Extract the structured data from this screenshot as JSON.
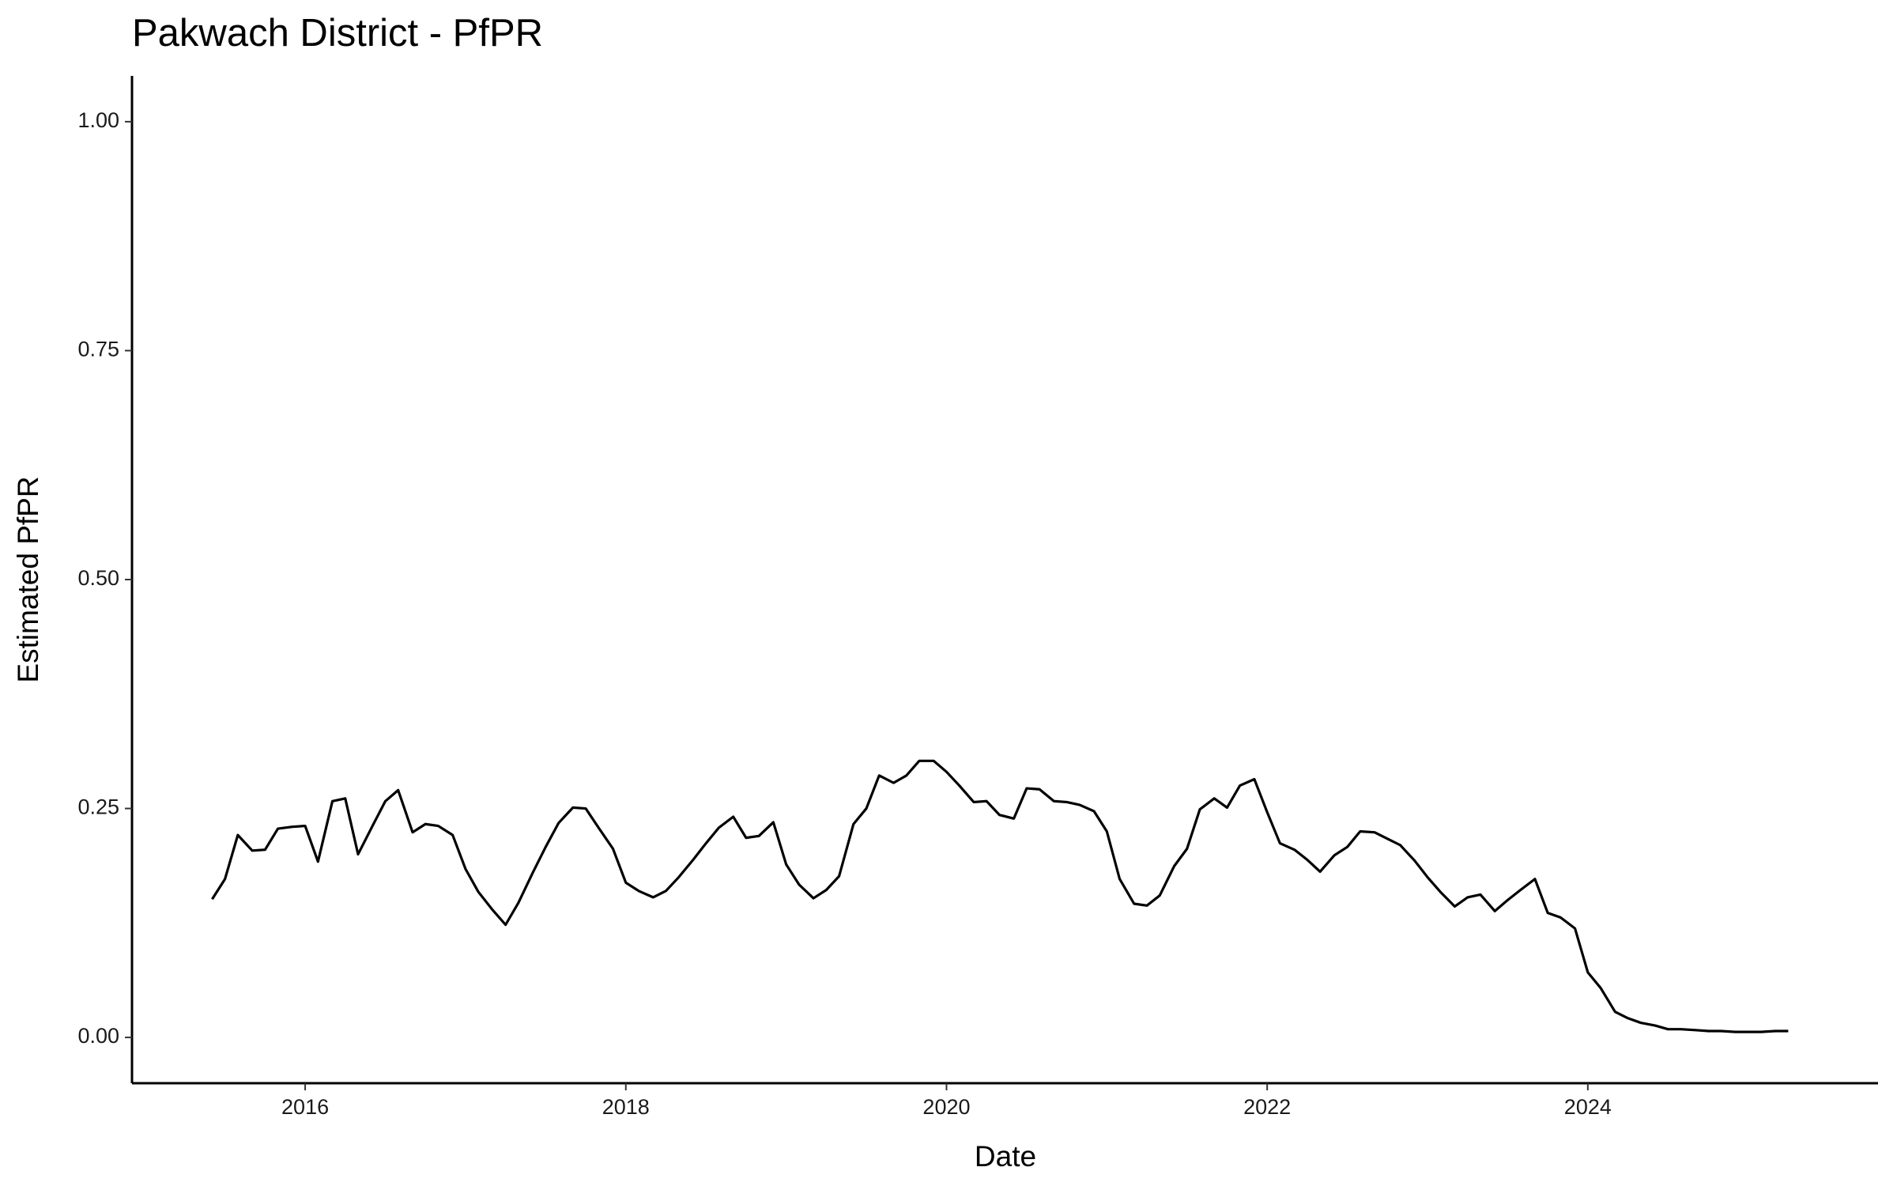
{
  "chart_data": {
    "type": "line",
    "title": "Pakwach District - PfPR",
    "x_label": "Date",
    "y_label": "Estimated PfPR",
    "x": [
      2015.42,
      2015.5,
      2015.58,
      2015.67,
      2015.75,
      2015.83,
      2015.92,
      2016.0,
      2016.08,
      2016.17,
      2016.25,
      2016.33,
      2016.42,
      2016.5,
      2016.58,
      2016.67,
      2016.75,
      2016.83,
      2016.92,
      2017.0,
      2017.08,
      2017.17,
      2017.25,
      2017.33,
      2017.42,
      2017.5,
      2017.58,
      2017.67,
      2017.75,
      2017.83,
      2017.92,
      2018.0,
      2018.08,
      2018.17,
      2018.25,
      2018.33,
      2018.42,
      2018.5,
      2018.58,
      2018.67,
      2018.75,
      2018.83,
      2018.92,
      2019.0,
      2019.08,
      2019.17,
      2019.25,
      2019.33,
      2019.42,
      2019.5,
      2019.58,
      2019.67,
      2019.75,
      2019.83,
      2019.92,
      2020.0,
      2020.08,
      2020.17,
      2020.25,
      2020.33,
      2020.42,
      2020.5,
      2020.58,
      2020.67,
      2020.75,
      2020.83,
      2020.92,
      2021.0,
      2021.08,
      2021.17,
      2021.25,
      2021.33,
      2021.42,
      2021.5,
      2021.58,
      2021.67,
      2021.75,
      2021.83,
      2021.92,
      2022.0,
      2022.08,
      2022.17,
      2022.25,
      2022.33,
      2022.42,
      2022.5,
      2022.58,
      2022.67,
      2022.75,
      2022.83,
      2022.92,
      2023.0,
      2023.08,
      2023.17,
      2023.25,
      2023.33,
      2023.42,
      2023.5,
      2023.58,
      2023.67,
      2023.75,
      2023.83,
      2023.92,
      2024.0,
      2024.08,
      2024.17,
      2024.25,
      2024.33,
      2024.42,
      2024.5,
      2024.58,
      2024.67,
      2024.75,
      2024.83,
      2024.92,
      2025.0,
      2025.08,
      2025.17,
      2025.25
    ],
    "values": [
      0.151,
      0.173,
      0.221,
      0.204,
      0.205,
      0.228,
      0.23,
      0.231,
      0.192,
      0.258,
      0.261,
      0.2,
      0.231,
      0.258,
      0.27,
      0.224,
      0.233,
      0.231,
      0.221,
      0.184,
      0.159,
      0.139,
      0.123,
      0.147,
      0.18,
      0.208,
      0.234,
      0.251,
      0.25,
      0.229,
      0.206,
      0.169,
      0.16,
      0.153,
      0.16,
      0.175,
      0.194,
      0.212,
      0.229,
      0.241,
      0.218,
      0.22,
      0.235,
      0.189,
      0.167,
      0.152,
      0.161,
      0.176,
      0.233,
      0.25,
      0.286,
      0.278,
      0.286,
      0.302,
      0.302,
      0.29,
      0.275,
      0.257,
      0.258,
      0.243,
      0.239,
      0.272,
      0.271,
      0.258,
      0.257,
      0.254,
      0.247,
      0.225,
      0.173,
      0.146,
      0.144,
      0.155,
      0.187,
      0.206,
      0.249,
      0.261,
      0.251,
      0.275,
      0.282,
      0.246,
      0.212,
      0.205,
      0.194,
      0.181,
      0.199,
      0.208,
      0.225,
      0.224,
      0.217,
      0.21,
      0.193,
      0.175,
      0.159,
      0.143,
      0.153,
      0.156,
      0.138,
      0.15,
      0.161,
      0.173,
      0.136,
      0.131,
      0.119,
      0.071,
      0.054,
      0.028,
      0.021,
      0.016,
      0.013,
      0.009,
      0.009,
      0.008,
      0.007,
      0.007,
      0.006,
      0.006,
      0.006,
      0.007,
      0.007
    ],
    "color": "#000000",
    "xlim": [
      2014.92,
      2025.81
    ],
    "xticks": [
      2016,
      2018,
      2020,
      2022,
      2024
    ],
    "ylim": [
      -0.05,
      1.05
    ],
    "yticks": [
      {
        "value": 0,
        "label": "0.00"
      },
      {
        "value": 0.25,
        "label": "0.25"
      },
      {
        "value": 0.5,
        "label": "0.50"
      },
      {
        "value": 0.75,
        "label": "0.75"
      },
      {
        "value": 1,
        "label": "1.00"
      }
    ],
    "grid": false
  }
}
